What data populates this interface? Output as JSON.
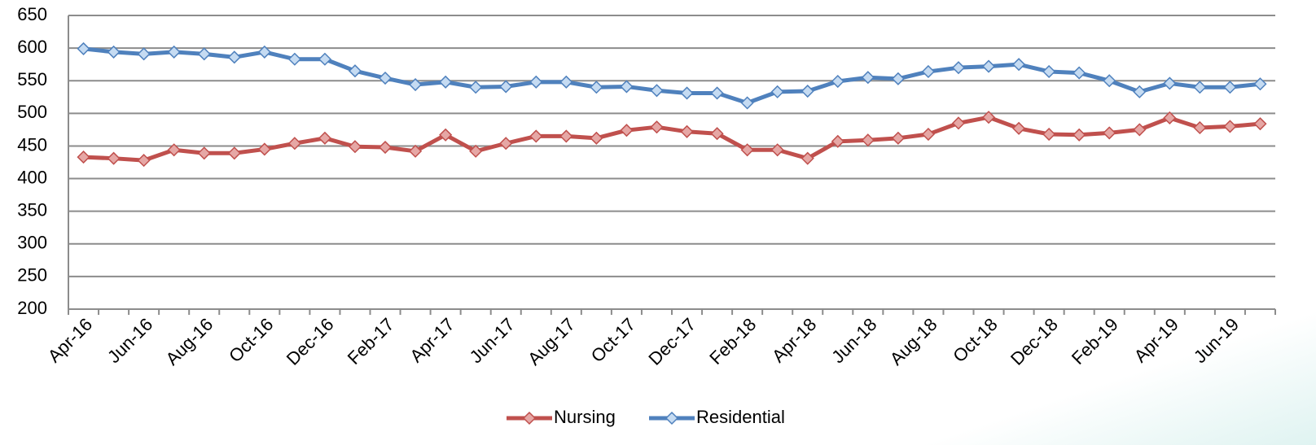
{
  "chart_data": {
    "type": "line",
    "categories": [
      "Apr-16",
      null,
      "Jun-16",
      null,
      "Aug-16",
      null,
      "Oct-16",
      null,
      "Dec-16",
      null,
      "Feb-17",
      null,
      "Apr-17",
      null,
      "Jun-17",
      null,
      "Aug-17",
      null,
      "Oct-17",
      null,
      "Dec-17",
      null,
      "Feb-18",
      null,
      "Apr-18",
      null,
      "Jun-18",
      null,
      "Aug-18",
      null,
      "Oct-18",
      null,
      "Dec-18",
      null,
      "Feb-19",
      null,
      "Apr-19",
      null,
      "Jun-19",
      null
    ],
    "series": [
      {
        "name": "Nursing",
        "color": "#c0504d",
        "values": [
          433,
          431,
          428,
          444,
          439,
          439,
          445,
          454,
          462,
          449,
          448,
          442,
          467,
          442,
          454,
          465,
          465,
          462,
          474,
          479,
          472,
          469,
          444,
          444,
          431,
          457,
          459,
          462,
          468,
          485,
          494,
          477,
          468,
          467,
          470,
          475,
          493,
          478,
          480,
          484
        ]
      },
      {
        "name": "Residential",
        "color": "#4f81bd",
        "values": [
          599,
          594,
          591,
          594,
          591,
          586,
          594,
          583,
          583,
          565,
          554,
          544,
          548,
          540,
          541,
          548,
          548,
          540,
          541,
          535,
          531,
          531,
          516,
          533,
          534,
          549,
          555,
          553,
          564,
          570,
          572,
          575,
          564,
          562,
          550,
          533,
          546,
          540,
          540,
          545
        ]
      }
    ],
    "ylim": [
      200,
      650
    ],
    "yticks": [
      200,
      250,
      300,
      350,
      400,
      450,
      500,
      550,
      600,
      650
    ],
    "grid": true,
    "legend": "bottom"
  }
}
